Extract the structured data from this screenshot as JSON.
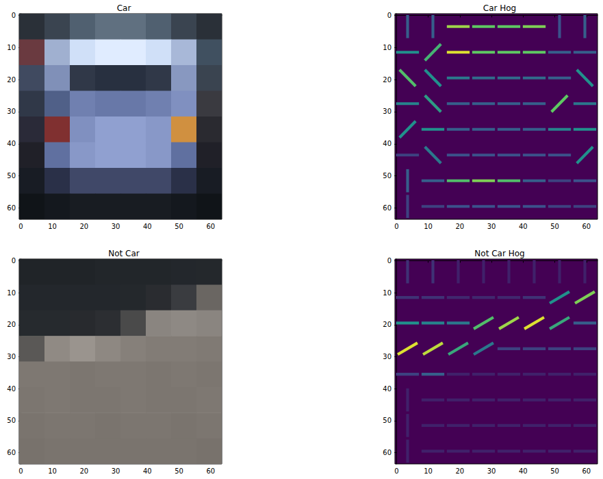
{
  "chart_data": [
    {
      "type": "image",
      "title": "Car",
      "xlim": [
        -0.5,
        63.5
      ],
      "ylim": [
        63.5,
        -0.5
      ],
      "xticks": [
        0,
        10,
        20,
        30,
        40,
        50,
        60
      ],
      "yticks": [
        0,
        10,
        20,
        30,
        40,
        50,
        60
      ],
      "grid": false,
      "pixels": [
        [
          "#2a3038",
          "#3a4450",
          "#506070",
          "#607080",
          "#607080",
          "#506070",
          "#3a4450",
          "#2a3038"
        ],
        [
          "#6a3a40",
          "#a0b0d0",
          "#d0e0f8",
          "#e0ecff",
          "#e0ecff",
          "#d0e0f8",
          "#a8b8d8",
          "#405060"
        ],
        [
          "#404a60",
          "#8090b8",
          "#303848",
          "#283040",
          "#283040",
          "#303848",
          "#8898c0",
          "#3a4450"
        ],
        [
          "#303848",
          "#506088",
          "#7080b0",
          "#6878a8",
          "#6878a8",
          "#7080b0",
          "#8090c0",
          "#3a3a40"
        ],
        [
          "#2a2a38",
          "#803030",
          "#8090c0",
          "#90a0d0",
          "#90a0d0",
          "#8898c8",
          "#d09040",
          "#2a2a30"
        ],
        [
          "#202028",
          "#6070a0",
          "#8898c8",
          "#90a0d0",
          "#90a0d0",
          "#8898c8",
          "#6070a0",
          "#202028"
        ],
        [
          "#181c24",
          "#2a3048",
          "#404868",
          "#404868",
          "#404868",
          "#404868",
          "#2a3048",
          "#181c24"
        ],
        [
          "#101418",
          "#14181e",
          "#181c22",
          "#181c22",
          "#181c22",
          "#181c22",
          "#14181e",
          "#101418"
        ]
      ]
    },
    {
      "type": "hog",
      "title": "Car Hog",
      "xlim": [
        -0.5,
        63.5
      ],
      "ylim": [
        63.5,
        -0.5
      ],
      "xticks": [
        0,
        10,
        20,
        30,
        40,
        50,
        60
      ],
      "yticks": [
        0,
        10,
        20,
        30,
        40,
        50,
        60
      ],
      "grid": false,
      "cells": [
        [
          [
            90,
            0.3
          ],
          [
            90,
            0.3
          ],
          [
            0,
            0.85
          ],
          [
            0,
            0.75
          ],
          [
            0,
            0.75
          ],
          [
            0,
            0.8
          ],
          [
            90,
            0.25
          ],
          [
            90,
            0.3
          ]
        ],
        [
          [
            0,
            0.5
          ],
          [
            45,
            0.65
          ],
          [
            0,
            0.95
          ],
          [
            0,
            0.75
          ],
          [
            0,
            0.75
          ],
          [
            0,
            0.75
          ],
          [
            0,
            0.3
          ],
          [
            0,
            0.3
          ]
        ],
        [
          [
            -45,
            0.7
          ],
          [
            -45,
            0.5
          ],
          [
            0,
            0.4
          ],
          [
            0,
            0.35
          ],
          [
            0,
            0.35
          ],
          [
            0,
            0.35
          ],
          [
            0,
            0.3
          ],
          [
            -45,
            0.5
          ]
        ],
        [
          [
            0,
            0.45
          ],
          [
            -45,
            0.55
          ],
          [
            0,
            0.3
          ],
          [
            0,
            0.3
          ],
          [
            0,
            0.3
          ],
          [
            0,
            0.3
          ],
          [
            45,
            0.75
          ],
          [
            0,
            0.4
          ]
        ],
        [
          [
            45,
            0.5
          ],
          [
            0,
            0.5
          ],
          [
            0,
            0.3
          ],
          [
            0,
            0.3
          ],
          [
            0,
            0.3
          ],
          [
            0,
            0.3
          ],
          [
            0,
            0.45
          ],
          [
            0,
            0.5
          ]
        ],
        [
          [
            0,
            0.2
          ],
          [
            -45,
            0.4
          ],
          [
            0,
            0.25
          ],
          [
            0,
            0.25
          ],
          [
            0,
            0.25
          ],
          [
            0,
            0.25
          ],
          [
            0,
            0.25
          ],
          [
            45,
            0.5
          ]
        ],
        [
          [
            90,
            0.3
          ],
          [
            0,
            0.3
          ],
          [
            0,
            0.7
          ],
          [
            0,
            0.8
          ],
          [
            0,
            0.7
          ],
          [
            0,
            0.3
          ],
          [
            0,
            0.2
          ],
          [
            0,
            0.25
          ]
        ],
        [
          [
            90,
            0.2
          ],
          [
            0,
            0.2
          ],
          [
            0,
            0.25
          ],
          [
            0,
            0.25
          ],
          [
            0,
            0.25
          ],
          [
            0,
            0.25
          ],
          [
            0,
            0.2
          ],
          [
            0,
            0.2
          ]
        ]
      ]
    },
    {
      "type": "image",
      "title": "Not Car",
      "xlim": [
        -0.5,
        63.5
      ],
      "ylim": [
        63.5,
        -0.5
      ],
      "xticks": [
        0,
        10,
        20,
        30,
        40,
        50,
        60
      ],
      "yticks": [
        0,
        10,
        20,
        30,
        40,
        50,
        60
      ],
      "grid": false,
      "pixels": [
        [
          "#202428",
          "#202428",
          "#202428",
          "#22262a",
          "#22262a",
          "#22262a",
          "#23272c",
          "#24282c"
        ],
        [
          "#23272c",
          "#23272c",
          "#23272c",
          "#23272c",
          "#24282c",
          "#2a2c30",
          "#3a3c40",
          "#6a6662"
        ],
        [
          "#262a2e",
          "#262a2e",
          "#282a2e",
          "#2c2e32",
          "#4a4a4a",
          "#8a8580",
          "#8e8984",
          "#8a8580"
        ],
        [
          "#5a5856",
          "#908a84",
          "#9a948e",
          "#8e8882",
          "#86807a",
          "#827c76",
          "#827c76",
          "#807a74"
        ],
        [
          "#7e7872",
          "#7e7872",
          "#7c7670",
          "#7e7872",
          "#7e7872",
          "#7c7670",
          "#7e7872",
          "#7c7670"
        ],
        [
          "#7c7670",
          "#7e7872",
          "#7c7670",
          "#7c7670",
          "#7e7872",
          "#7c7670",
          "#7c7670",
          "#7e7872"
        ],
        [
          "#7a746e",
          "#7c7670",
          "#7c7670",
          "#7a746e",
          "#7c7670",
          "#7c7670",
          "#7a746e",
          "#7c7670"
        ],
        [
          "#78726c",
          "#7a746e",
          "#7a746e",
          "#7a746e",
          "#7a746e",
          "#7a746e",
          "#7a746e",
          "#78726c"
        ]
      ]
    },
    {
      "type": "hog",
      "title": "Not Car Hog",
      "xlim": [
        -0.5,
        63.5
      ],
      "ylim": [
        63.5,
        -0.5
      ],
      "xticks": [
        0,
        10,
        20,
        30,
        40,
        50,
        60
      ],
      "yticks": [
        0,
        10,
        20,
        30,
        40,
        50,
        60
      ],
      "grid": false,
      "cells": [
        [
          [
            90,
            0.15
          ],
          [
            90,
            0.15
          ],
          [
            90,
            0.1
          ],
          [
            90,
            0.1
          ],
          [
            90,
            0.1
          ],
          [
            90,
            0.1
          ],
          [
            90,
            0.1
          ],
          [
            90,
            0.1
          ]
        ],
        [
          [
            0,
            0.15
          ],
          [
            0,
            0.15
          ],
          [
            0,
            0.12
          ],
          [
            0,
            0.12
          ],
          [
            0,
            0.12
          ],
          [
            0,
            0.15
          ],
          [
            30,
            0.5
          ],
          [
            30,
            0.8
          ]
        ],
        [
          [
            0,
            0.5
          ],
          [
            0,
            0.45
          ],
          [
            0,
            0.4
          ],
          [
            30,
            0.7
          ],
          [
            30,
            0.85
          ],
          [
            30,
            0.95
          ],
          [
            30,
            0.6
          ],
          [
            0,
            0.3
          ]
        ],
        [
          [
            30,
            0.95
          ],
          [
            30,
            0.9
          ],
          [
            30,
            0.6
          ],
          [
            30,
            0.4
          ],
          [
            0,
            0.2
          ],
          [
            0,
            0.2
          ],
          [
            0,
            0.2
          ],
          [
            0,
            0.2
          ]
        ],
        [
          [
            0,
            0.2
          ],
          [
            0,
            0.3
          ],
          [
            0,
            0.1
          ],
          [
            0,
            0.1
          ],
          [
            0,
            0.1
          ],
          [
            0,
            0.1
          ],
          [
            0,
            0.1
          ],
          [
            0,
            0.1
          ]
        ],
        [
          [
            90,
            0.1
          ],
          [
            0,
            0.1
          ],
          [
            0,
            0.1
          ],
          [
            0,
            0.1
          ],
          [
            0,
            0.1
          ],
          [
            0,
            0.1
          ],
          [
            0,
            0.1
          ],
          [
            0,
            0.1
          ]
        ],
        [
          [
            90,
            0.1
          ],
          [
            0,
            0.1
          ],
          [
            0,
            0.1
          ],
          [
            0,
            0.1
          ],
          [
            0,
            0.1
          ],
          [
            0,
            0.1
          ],
          [
            0,
            0.1
          ],
          [
            0,
            0.1
          ]
        ],
        [
          [
            90,
            0.1
          ],
          [
            0,
            0.1
          ],
          [
            0,
            0.1
          ],
          [
            0,
            0.1
          ],
          [
            0,
            0.1
          ],
          [
            0,
            0.1
          ],
          [
            0,
            0.1
          ],
          [
            0,
            0.1
          ]
        ]
      ]
    }
  ]
}
